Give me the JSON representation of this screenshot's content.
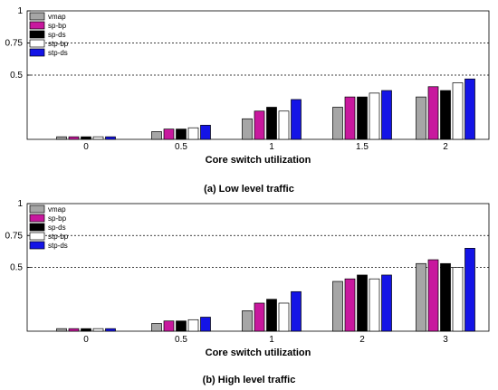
{
  "colors": {
    "vmap": "#a6a6a6",
    "sp-bp": "#c8189e",
    "sp-ds": "#000000",
    "stp-bp": "#ffffff",
    "stp-ds": "#1414e6"
  },
  "chart_data": [
    {
      "type": "bar",
      "caption": "(a) Low level traffic",
      "xlabel": "Core switch utilization",
      "ylabel": "",
      "ylim": [
        0,
        1
      ],
      "yticks": [
        0.5,
        0.75,
        1
      ],
      "ytick_labels": [
        "0.5",
        "0.75",
        "1"
      ],
      "reference_lines": [
        0.5,
        0.75
      ],
      "legend_position": "top-left",
      "categories": [
        "0",
        "0.5",
        "1",
        "1.5",
        "2"
      ],
      "series": [
        {
          "name": "vmap",
          "values": [
            0.02,
            0.06,
            0.16,
            0.25,
            0.33
          ]
        },
        {
          "name": "sp-bp",
          "values": [
            0.02,
            0.08,
            0.22,
            0.33,
            0.41
          ]
        },
        {
          "name": "sp-ds",
          "values": [
            0.02,
            0.08,
            0.25,
            0.33,
            0.38
          ]
        },
        {
          "name": "stp-bp",
          "values": [
            0.02,
            0.09,
            0.22,
            0.36,
            0.44
          ]
        },
        {
          "name": "stp-ds",
          "values": [
            0.02,
            0.11,
            0.31,
            0.38,
            0.47
          ]
        }
      ]
    },
    {
      "type": "bar",
      "caption": "(b) High level traffic",
      "xlabel": "Core switch utilization",
      "ylabel": "",
      "ylim": [
        0,
        1
      ],
      "yticks": [
        0.5,
        0.75,
        1
      ],
      "ytick_labels": [
        "0.5",
        "0.75",
        "1"
      ],
      "reference_lines": [
        0.5,
        0.75
      ],
      "legend_position": "top-left",
      "categories": [
        "0",
        "0.5",
        "1",
        "2",
        "3"
      ],
      "series": [
        {
          "name": "vmap",
          "values": [
            0.02,
            0.06,
            0.16,
            0.39,
            0.53
          ]
        },
        {
          "name": "sp-bp",
          "values": [
            0.02,
            0.08,
            0.22,
            0.41,
            0.56
          ]
        },
        {
          "name": "sp-ds",
          "values": [
            0.02,
            0.08,
            0.25,
            0.44,
            0.53
          ]
        },
        {
          "name": "stp-bp",
          "values": [
            0.02,
            0.09,
            0.22,
            0.41,
            0.5
          ]
        },
        {
          "name": "stp-ds",
          "values": [
            0.02,
            0.11,
            0.31,
            0.44,
            0.65
          ]
        }
      ]
    }
  ]
}
